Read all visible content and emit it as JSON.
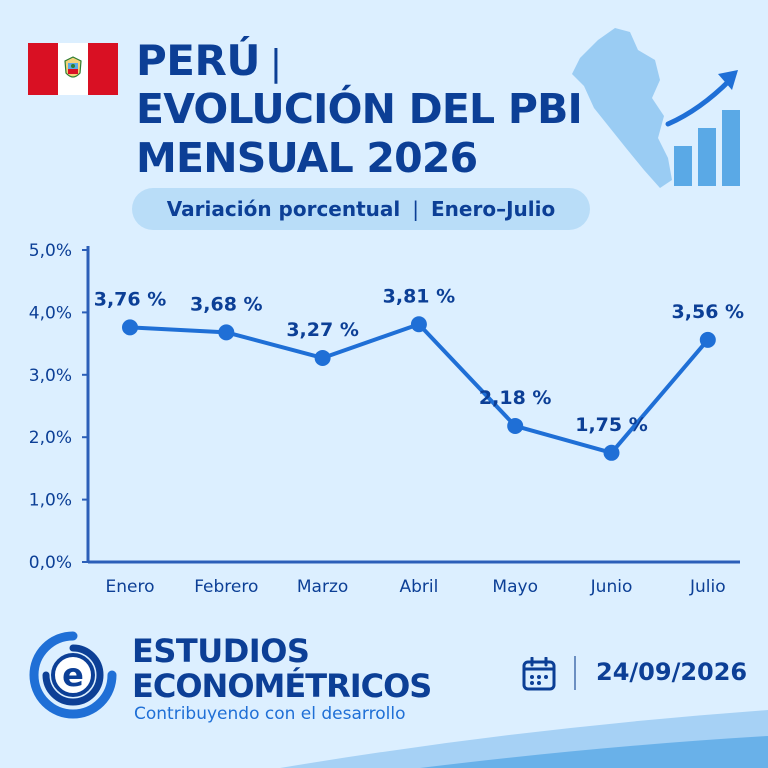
{
  "header": {
    "country": "PERÚ",
    "separator": "|",
    "title_line_2": "EVOLUCIÓN DEL PBI",
    "title_line_3": "MENSUAL 2026",
    "subtitle_left": "Variación porcentual",
    "subtitle_sep": "|",
    "subtitle_right": "Enero–Julio"
  },
  "chart_data": {
    "type": "line",
    "categories": [
      "Enero",
      "Febrero",
      "Marzo",
      "Abril",
      "Mayo",
      "Junio",
      "Julio"
    ],
    "values": [
      3.76,
      3.68,
      3.27,
      3.81,
      2.18,
      1.75,
      3.56
    ],
    "data_labels": [
      "3,76 %",
      "3,68 %",
      "3,27 %",
      "3,81 %",
      "2,18 %",
      "1,75 %",
      "3,56 %"
    ],
    "yticks": [
      "0,0%",
      "1,0%",
      "2,0%",
      "3,0%",
      "4,0%",
      "5,0%"
    ],
    "ylim": [
      0,
      5
    ],
    "grid": false,
    "colors": {
      "line": "#1f6fd6",
      "marker": "#1f6fd6",
      "axis": "#2c5fb8",
      "text": "#0c3f96"
    }
  },
  "brand": {
    "name_line_1": "ESTUDIOS",
    "name_line_2": "ECONOMÉTRICOS",
    "tagline": "Contribuyendo con el desarrollo",
    "logo_letter": "e"
  },
  "date": "24/09/2026",
  "icons": {
    "flag": "peru-flag-icon",
    "map": "peru-map-icon",
    "growth": "growth-bars-arrow-icon",
    "calendar": "calendar-icon",
    "logo": "estudios-econometricos-logo"
  },
  "colors": {
    "background": "#dcefff",
    "primary": "#0c3f96",
    "accent": "#1f6fd6",
    "pill": "#b9ddf8"
  }
}
